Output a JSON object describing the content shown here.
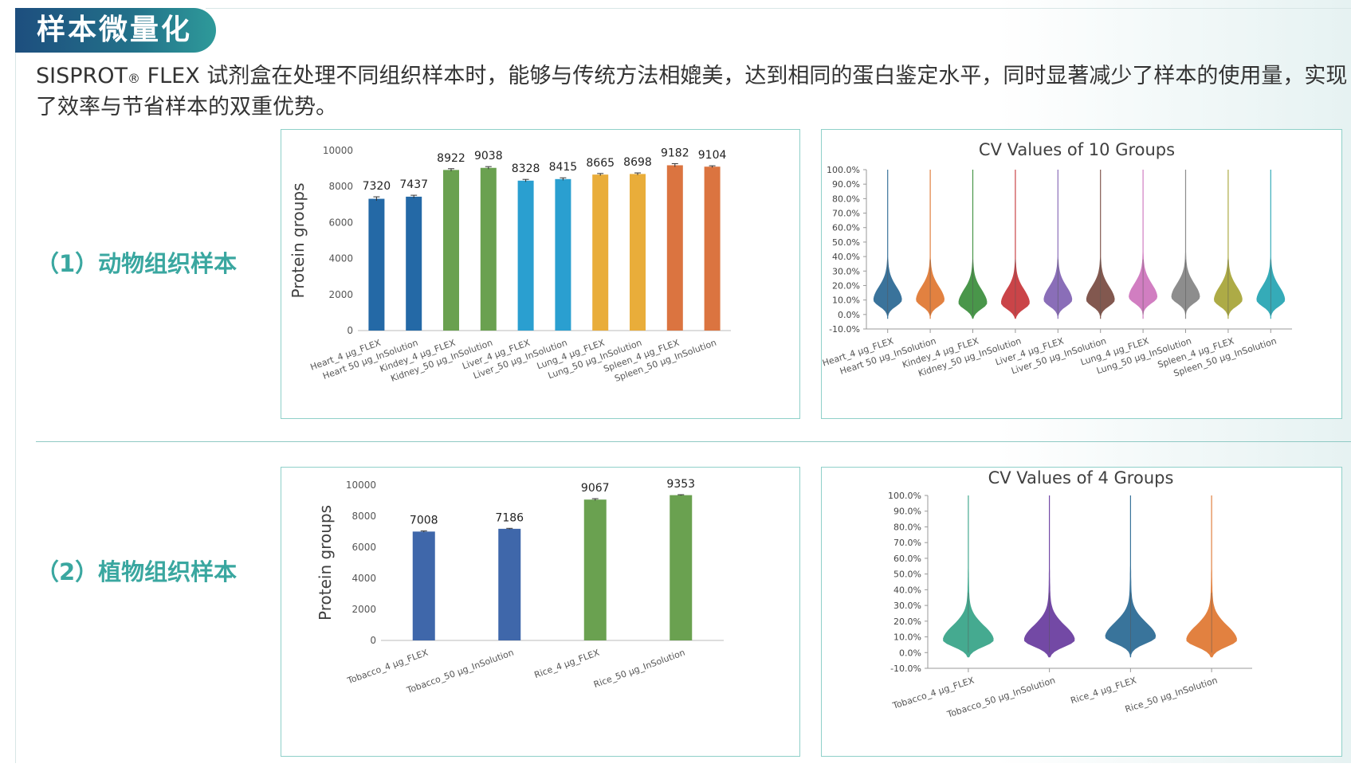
{
  "header": {
    "title": "样本微量化"
  },
  "intro": {
    "brand": "SISPROT",
    "reg": "®",
    "text": " FLEX 试剂盒在处理不同组织样本时，能够与传统方法相媲美，达到相同的蛋白鉴定水平，同时显著减少了样本的使用量，实现了效率与节省样本的双重优势。"
  },
  "sections": [
    {
      "label": "（1）动物组织样本"
    },
    {
      "label": "（2）植物组织样本"
    }
  ],
  "chart_data": [
    {
      "type": "bar",
      "ylabel": "Protein groups",
      "ylim": [
        0,
        10000
      ],
      "yticks": [
        0,
        2000,
        4000,
        6000,
        8000,
        10000
      ],
      "categories": [
        "Heart_4 μg_FLEX",
        "Heart 50 μg_InSolution",
        "Kindey_4 μg_FLEX",
        "Kidney_50 μg_InSolution",
        "Liver_4 μg_FLEX",
        "Liver_50 μg_InSolution",
        "Lung_4 μg_FLEX",
        "Lung_50 μg_InSolution",
        "Spleen_4 μg_FLEX",
        "Spleen_50 μg_InSolution"
      ],
      "values": [
        7320,
        7437,
        8922,
        9038,
        8328,
        8415,
        8665,
        8698,
        9182,
        9104
      ],
      "error": [
        110,
        80,
        70,
        70,
        70,
        70,
        60,
        60,
        90,
        50
      ],
      "colors": [
        "#2469a6",
        "#2469a6",
        "#6aa150",
        "#6aa150",
        "#2a9fd0",
        "#2a9fd0",
        "#e9ad3a",
        "#e9ad3a",
        "#db7440",
        "#db7440"
      ]
    },
    {
      "type": "violin",
      "title": "CV Values of 10 Groups",
      "ylim": [
        -10,
        100
      ],
      "yticks": [
        "-10.0%",
        "0.0%",
        "10.0%",
        "20.0%",
        "30.0%",
        "40.0%",
        "50.0%",
        "60.0%",
        "70.0%",
        "80.0%",
        "90.0%",
        "100.0%"
      ],
      "categories": [
        "Heart_4 μg_FLEX",
        "Heart 50 μg_InSolution",
        "Kindey_4 μg_FLEX",
        "Kidney_50 μg_InSolution",
        "Liver_4 μg_FLEX",
        "Liver_50 μg_InSolution",
        "Lung_4 μg_FLEX",
        "Lung_50 μg_InSolution",
        "Spleen_4 μg_FLEX",
        "Spleen_50 μg_InSolution"
      ],
      "colors": [
        "#2f6c96",
        "#e07a36",
        "#3f9040",
        "#c73a3e",
        "#8466b4",
        "#7b4f46",
        "#cf77be",
        "#878787",
        "#a9a73c",
        "#2aa7b4"
      ],
      "peak": [
        10,
        10,
        8,
        8,
        10,
        10,
        12,
        12,
        10,
        10
      ]
    },
    {
      "type": "bar",
      "ylabel": "Protein groups",
      "ylim": [
        0,
        10000
      ],
      "yticks": [
        0,
        2000,
        4000,
        6000,
        8000,
        10000
      ],
      "categories": [
        "Tobacco_4 μg_FLEX",
        "Tobacco_50 μg_InSolution",
        "Rice_4 μg_FLEX",
        "Rice_50 μg_InSolution"
      ],
      "values": [
        7008,
        7186,
        9067,
        9353
      ],
      "error": [
        40,
        30,
        60,
        30
      ],
      "colors": [
        "#3f67aa",
        "#3f67aa",
        "#6aa150",
        "#6aa150"
      ]
    },
    {
      "type": "violin",
      "title": "CV Values of 4 Groups",
      "ylim": [
        -10,
        100
      ],
      "yticks": [
        "-10.0%",
        "0.0%",
        "10.0%",
        "20.0%",
        "30.0%",
        "40.0%",
        "50.0%",
        "60.0%",
        "70.0%",
        "80.0%",
        "90.0%",
        "100.0%"
      ],
      "categories": [
        "Tobacco_4 μg_FLEX",
        "Tobacco_50 μg_InSolution",
        "Rice_4 μg_FLEX",
        "Rice_50 μg_InSolution"
      ],
      "colors": [
        "#3ba58a",
        "#6b3fa0",
        "#2e6d96",
        "#e07a36"
      ],
      "peak": [
        8,
        8,
        10,
        8
      ]
    }
  ]
}
